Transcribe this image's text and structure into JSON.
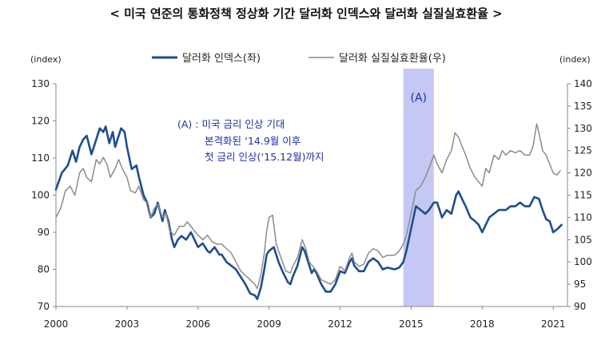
{
  "chart_data": {
    "type": "line",
    "title": "< 미국 연준의 통화정책 정상화 기간 달러화 인덱스와 달러화 실질실효환율 >",
    "left_unit": "(index)",
    "right_unit": "(index)",
    "legend_placement": "top-center",
    "grid": false,
    "x_range": [
      2000,
      2021.6
    ],
    "x_ticks": [
      "2000",
      "2003",
      "2006",
      "2009",
      "2012",
      "2015",
      "2018",
      "2021"
    ],
    "ylim_left": [
      70,
      130
    ],
    "ylim_right": [
      90,
      140
    ],
    "y_ticks_left": [
      "70",
      "80",
      "90",
      "100",
      "110",
      "120",
      "130"
    ],
    "y_ticks_right": [
      "90",
      "95",
      "100",
      "105",
      "110",
      "115",
      "120",
      "125",
      "130",
      "135",
      "140"
    ],
    "shaded_region": {
      "label": "(A)",
      "from": 2014.67,
      "to": 2015.96,
      "color": "#c5c8f5"
    },
    "annotation": [
      "(A) : 미국 금리 인상 기대",
      "본격화된 ‘14.9월 이후",
      "첫 금리 인상(‘15.12월)까지"
    ],
    "series": [
      {
        "name": "달러화 인덱스(좌)",
        "axis": "left",
        "color": "#1f4e8c",
        "points": [
          [
            2000.0,
            101.5
          ],
          [
            2000.25,
            106
          ],
          [
            2000.5,
            108
          ],
          [
            2000.7,
            112
          ],
          [
            2000.85,
            109
          ],
          [
            2001.0,
            113
          ],
          [
            2001.15,
            115
          ],
          [
            2001.3,
            116
          ],
          [
            2001.5,
            111
          ],
          [
            2001.7,
            115
          ],
          [
            2001.85,
            118
          ],
          [
            2002.0,
            117
          ],
          [
            2002.1,
            118.5
          ],
          [
            2002.25,
            114
          ],
          [
            2002.4,
            117
          ],
          [
            2002.5,
            113
          ],
          [
            2002.6,
            115
          ],
          [
            2002.75,
            118
          ],
          [
            2002.9,
            117
          ],
          [
            2003.0,
            113
          ],
          [
            2003.2,
            107
          ],
          [
            2003.4,
            108
          ],
          [
            2003.5,
            105
          ],
          [
            2003.7,
            100
          ],
          [
            2003.85,
            98
          ],
          [
            2004.0,
            94
          ],
          [
            2004.15,
            95
          ],
          [
            2004.3,
            98
          ],
          [
            2004.5,
            93
          ],
          [
            2004.6,
            96
          ],
          [
            2004.75,
            93
          ],
          [
            2004.9,
            88
          ],
          [
            2005.0,
            86
          ],
          [
            2005.15,
            88
          ],
          [
            2005.3,
            89
          ],
          [
            2005.5,
            88
          ],
          [
            2005.7,
            90
          ],
          [
            2005.85,
            88
          ],
          [
            2006.0,
            86
          ],
          [
            2006.2,
            87
          ],
          [
            2006.4,
            85
          ],
          [
            2006.5,
            84.5
          ],
          [
            2006.7,
            86
          ],
          [
            2006.9,
            84
          ],
          [
            2007.0,
            84
          ],
          [
            2007.2,
            82
          ],
          [
            2007.4,
            81
          ],
          [
            2007.6,
            80
          ],
          [
            2007.8,
            78
          ],
          [
            2008.0,
            76
          ],
          [
            2008.2,
            73.5
          ],
          [
            2008.4,
            73
          ],
          [
            2008.5,
            72
          ],
          [
            2008.65,
            75
          ],
          [
            2008.8,
            80
          ],
          [
            2008.9,
            84
          ],
          [
            2009.0,
            85
          ],
          [
            2009.2,
            86
          ],
          [
            2009.4,
            82
          ],
          [
            2009.6,
            79
          ],
          [
            2009.8,
            76.5
          ],
          [
            2009.9,
            76
          ],
          [
            2010.0,
            78
          ],
          [
            2010.2,
            81
          ],
          [
            2010.4,
            86
          ],
          [
            2010.5,
            85
          ],
          [
            2010.65,
            82
          ],
          [
            2010.8,
            79
          ],
          [
            2010.9,
            80
          ],
          [
            2011.0,
            79
          ],
          [
            2011.2,
            76
          ],
          [
            2011.4,
            74
          ],
          [
            2011.6,
            74
          ],
          [
            2011.8,
            76
          ],
          [
            2012.0,
            79.5
          ],
          [
            2012.2,
            79
          ],
          [
            2012.4,
            82
          ],
          [
            2012.5,
            83
          ],
          [
            2012.6,
            81
          ],
          [
            2012.8,
            79.5
          ],
          [
            2013.0,
            79.5
          ],
          [
            2013.2,
            82
          ],
          [
            2013.4,
            83
          ],
          [
            2013.6,
            82
          ],
          [
            2013.8,
            80
          ],
          [
            2014.0,
            80.5
          ],
          [
            2014.3,
            80
          ],
          [
            2014.5,
            80.5
          ],
          [
            2014.67,
            82
          ],
          [
            2014.8,
            85
          ],
          [
            2015.0,
            91
          ],
          [
            2015.2,
            97
          ],
          [
            2015.4,
            96
          ],
          [
            2015.6,
            95
          ],
          [
            2015.75,
            96
          ],
          [
            2015.96,
            98
          ],
          [
            2016.1,
            98
          ],
          [
            2016.3,
            94
          ],
          [
            2016.5,
            96
          ],
          [
            2016.7,
            95
          ],
          [
            2016.9,
            100
          ],
          [
            2017.0,
            101
          ],
          [
            2017.15,
            99
          ],
          [
            2017.3,
            97
          ],
          [
            2017.5,
            94
          ],
          [
            2017.7,
            93
          ],
          [
            2017.85,
            92
          ],
          [
            2018.0,
            90
          ],
          [
            2018.15,
            92
          ],
          [
            2018.3,
            94
          ],
          [
            2018.5,
            95
          ],
          [
            2018.7,
            96
          ],
          [
            2018.85,
            96
          ],
          [
            2019.0,
            96
          ],
          [
            2019.2,
            97
          ],
          [
            2019.4,
            97
          ],
          [
            2019.6,
            98
          ],
          [
            2019.8,
            97
          ],
          [
            2020.0,
            97
          ],
          [
            2020.2,
            99.5
          ],
          [
            2020.4,
            99
          ],
          [
            2020.55,
            96
          ],
          [
            2020.7,
            93.5
          ],
          [
            2020.85,
            93
          ],
          [
            2021.0,
            90
          ],
          [
            2021.2,
            91
          ],
          [
            2021.35,
            92
          ]
        ]
      },
      {
        "name": "달러화 실질실효환율(우)",
        "axis": "right",
        "color": "#8c8c8c",
        "points": [
          [
            2000.0,
            110
          ],
          [
            2000.2,
            112
          ],
          [
            2000.4,
            116
          ],
          [
            2000.6,
            117
          ],
          [
            2000.8,
            115
          ],
          [
            2001.0,
            120
          ],
          [
            2001.15,
            121
          ],
          [
            2001.3,
            119
          ],
          [
            2001.5,
            118
          ],
          [
            2001.7,
            123
          ],
          [
            2001.85,
            122
          ],
          [
            2002.0,
            123.5
          ],
          [
            2002.15,
            122
          ],
          [
            2002.3,
            119
          ],
          [
            2002.5,
            121
          ],
          [
            2002.65,
            123
          ],
          [
            2002.8,
            121
          ],
          [
            2003.0,
            119
          ],
          [
            2003.15,
            116
          ],
          [
            2003.35,
            115.5
          ],
          [
            2003.5,
            117
          ],
          [
            2003.7,
            114
          ],
          [
            2003.9,
            113
          ],
          [
            2004.0,
            110
          ],
          [
            2004.15,
            112
          ],
          [
            2004.3,
            113
          ],
          [
            2004.5,
            110
          ],
          [
            2004.65,
            111
          ],
          [
            2004.8,
            107
          ],
          [
            2005.0,
            106
          ],
          [
            2005.2,
            108
          ],
          [
            2005.4,
            108
          ],
          [
            2005.55,
            109
          ],
          [
            2005.7,
            108
          ],
          [
            2005.85,
            107
          ],
          [
            2006.0,
            106
          ],
          [
            2006.2,
            105
          ],
          [
            2006.4,
            106
          ],
          [
            2006.6,
            104.5
          ],
          [
            2006.8,
            104
          ],
          [
            2007.0,
            104
          ],
          [
            2007.2,
            103
          ],
          [
            2007.4,
            102
          ],
          [
            2007.6,
            100
          ],
          [
            2007.8,
            98
          ],
          [
            2008.0,
            97
          ],
          [
            2008.2,
            96
          ],
          [
            2008.4,
            95
          ],
          [
            2008.5,
            94
          ],
          [
            2008.65,
            97
          ],
          [
            2008.8,
            102
          ],
          [
            2008.9,
            107
          ],
          [
            2009.0,
            110
          ],
          [
            2009.15,
            110.5
          ],
          [
            2009.3,
            104
          ],
          [
            2009.5,
            101
          ],
          [
            2009.7,
            98
          ],
          [
            2009.9,
            97.5
          ],
          [
            2010.0,
            99
          ],
          [
            2010.2,
            101
          ],
          [
            2010.4,
            105
          ],
          [
            2010.55,
            103
          ],
          [
            2010.7,
            100
          ],
          [
            2010.85,
            99
          ],
          [
            2011.0,
            98
          ],
          [
            2011.2,
            96
          ],
          [
            2011.4,
            95.5
          ],
          [
            2011.6,
            95
          ],
          [
            2011.8,
            96
          ],
          [
            2012.0,
            99
          ],
          [
            2012.2,
            98
          ],
          [
            2012.4,
            101
          ],
          [
            2012.5,
            102
          ],
          [
            2012.6,
            100
          ],
          [
            2012.8,
            99
          ],
          [
            2013.0,
            99.5
          ],
          [
            2013.2,
            102
          ],
          [
            2013.4,
            103
          ],
          [
            2013.6,
            102.5
          ],
          [
            2013.8,
            101
          ],
          [
            2014.0,
            101.5
          ],
          [
            2014.3,
            101.5
          ],
          [
            2014.5,
            102.5
          ],
          [
            2014.67,
            104
          ],
          [
            2014.8,
            106
          ],
          [
            2015.0,
            111
          ],
          [
            2015.2,
            116
          ],
          [
            2015.4,
            117
          ],
          [
            2015.6,
            119
          ],
          [
            2015.75,
            121
          ],
          [
            2015.96,
            124
          ],
          [
            2016.1,
            122
          ],
          [
            2016.3,
            120
          ],
          [
            2016.5,
            123
          ],
          [
            2016.7,
            125
          ],
          [
            2016.85,
            129
          ],
          [
            2017.0,
            128
          ],
          [
            2017.15,
            126
          ],
          [
            2017.3,
            124
          ],
          [
            2017.5,
            121
          ],
          [
            2017.7,
            119
          ],
          [
            2017.85,
            118
          ],
          [
            2018.0,
            117
          ],
          [
            2018.15,
            121
          ],
          [
            2018.3,
            120
          ],
          [
            2018.5,
            124
          ],
          [
            2018.7,
            123
          ],
          [
            2018.85,
            125
          ],
          [
            2019.0,
            124
          ],
          [
            2019.2,
            125
          ],
          [
            2019.4,
            124.5
          ],
          [
            2019.6,
            125
          ],
          [
            2019.8,
            124
          ],
          [
            2020.0,
            124
          ],
          [
            2020.15,
            126
          ],
          [
            2020.3,
            131
          ],
          [
            2020.4,
            129
          ],
          [
            2020.55,
            125
          ],
          [
            2020.7,
            124
          ],
          [
            2020.85,
            122
          ],
          [
            2021.0,
            120
          ],
          [
            2021.15,
            119.5
          ],
          [
            2021.3,
            120.5
          ]
        ]
      }
    ]
  }
}
